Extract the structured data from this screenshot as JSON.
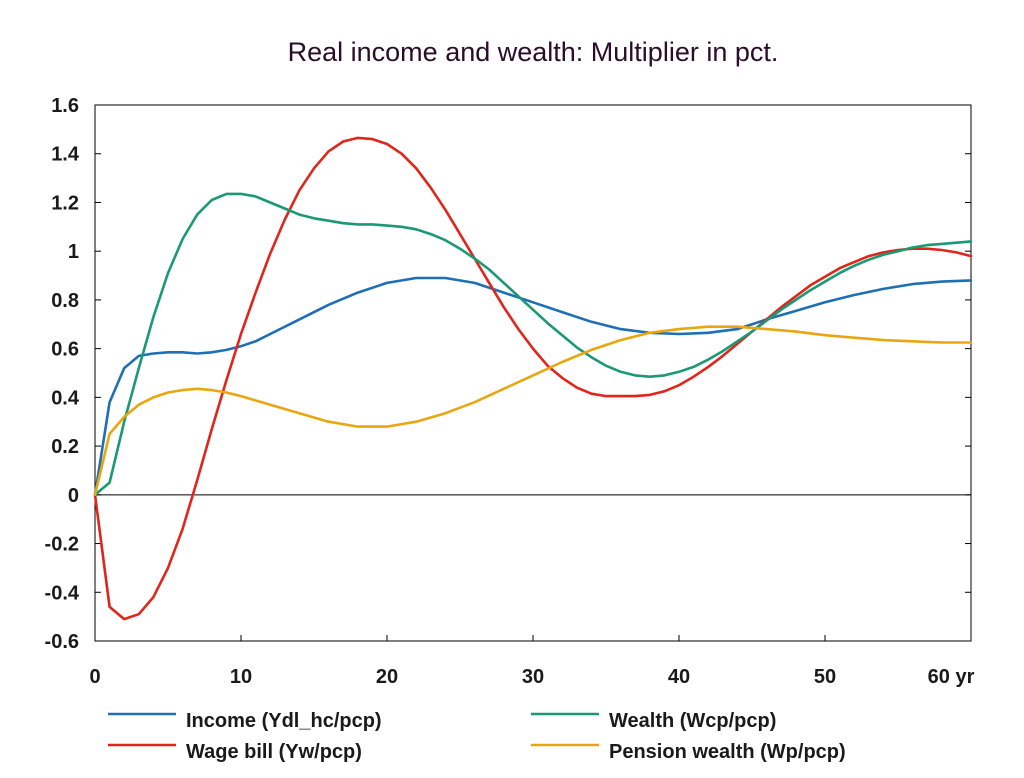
{
  "chart_data": {
    "type": "line",
    "title": "Real income and wealth: Multiplier in pct.",
    "xlabel": "",
    "ylabel": "",
    "xlim": [
      0,
      60
    ],
    "ylim": [
      -0.6,
      1.6
    ],
    "x_ticks": [
      "0",
      "10",
      "20",
      "30",
      "40",
      "50",
      "60 yr"
    ],
    "x_tick_values": [
      0,
      10,
      20,
      30,
      40,
      50,
      60
    ],
    "y_ticks": [
      "-0.6",
      "-0.4",
      "-0.2",
      "0",
      "0.2",
      "0.4",
      "0.6",
      "0.8",
      "1",
      "1.2",
      "1.4",
      "1.6"
    ],
    "y_tick_values": [
      -0.6,
      -0.4,
      -0.2,
      0,
      0.2,
      0.4,
      0.6,
      0.8,
      1,
      1.2,
      1.4,
      1.6
    ],
    "zero_line": true,
    "grid": false,
    "legend_position": "bottom",
    "series": [
      {
        "name": "Income (Ydl_hc/pcp)",
        "color": "#1f6fb4",
        "points": [
          [
            0,
            0
          ],
          [
            1,
            0.38
          ],
          [
            2,
            0.52
          ],
          [
            3,
            0.57
          ],
          [
            4,
            0.58
          ],
          [
            5,
            0.585
          ],
          [
            6,
            0.585
          ],
          [
            7,
            0.58
          ],
          [
            8,
            0.585
          ],
          [
            9,
            0.595
          ],
          [
            10,
            0.61
          ],
          [
            11,
            0.63
          ],
          [
            12,
            0.66
          ],
          [
            14,
            0.72
          ],
          [
            16,
            0.78
          ],
          [
            18,
            0.83
          ],
          [
            20,
            0.87
          ],
          [
            22,
            0.89
          ],
          [
            24,
            0.89
          ],
          [
            26,
            0.87
          ],
          [
            28,
            0.83
          ],
          [
            30,
            0.79
          ],
          [
            32,
            0.75
          ],
          [
            34,
            0.71
          ],
          [
            36,
            0.68
          ],
          [
            38,
            0.665
          ],
          [
            40,
            0.66
          ],
          [
            42,
            0.665
          ],
          [
            44,
            0.68
          ],
          [
            46,
            0.72
          ],
          [
            48,
            0.755
          ],
          [
            50,
            0.79
          ],
          [
            52,
            0.82
          ],
          [
            54,
            0.845
          ],
          [
            56,
            0.865
          ],
          [
            58,
            0.875
          ],
          [
            60,
            0.88
          ]
        ]
      },
      {
        "name": "Wage bill (Yw/pcp)",
        "color": "#e0251b",
        "points": [
          [
            0,
            0
          ],
          [
            1,
            -0.46
          ],
          [
            2,
            -0.51
          ],
          [
            3,
            -0.49
          ],
          [
            4,
            -0.42
          ],
          [
            5,
            -0.3
          ],
          [
            6,
            -0.14
          ],
          [
            7,
            0.06
          ],
          [
            8,
            0.27
          ],
          [
            9,
            0.47
          ],
          [
            10,
            0.66
          ],
          [
            11,
            0.83
          ],
          [
            12,
            0.99
          ],
          [
            13,
            1.13
          ],
          [
            14,
            1.25
          ],
          [
            15,
            1.34
          ],
          [
            16,
            1.41
          ],
          [
            17,
            1.45
          ],
          [
            18,
            1.465
          ],
          [
            19,
            1.46
          ],
          [
            20,
            1.44
          ],
          [
            21,
            1.4
          ],
          [
            22,
            1.34
          ],
          [
            23,
            1.26
          ],
          [
            24,
            1.17
          ],
          [
            25,
            1.07
          ],
          [
            26,
            0.97
          ],
          [
            27,
            0.87
          ],
          [
            28,
            0.77
          ],
          [
            29,
            0.68
          ],
          [
            30,
            0.6
          ],
          [
            31,
            0.53
          ],
          [
            32,
            0.48
          ],
          [
            33,
            0.44
          ],
          [
            34,
            0.415
          ],
          [
            35,
            0.405
          ],
          [
            36,
            0.405
          ],
          [
            37,
            0.405
          ],
          [
            38,
            0.41
          ],
          [
            39,
            0.425
          ],
          [
            40,
            0.45
          ],
          [
            41,
            0.485
          ],
          [
            42,
            0.525
          ],
          [
            43,
            0.57
          ],
          [
            44,
            0.62
          ],
          [
            45,
            0.67
          ],
          [
            46,
            0.72
          ],
          [
            47,
            0.77
          ],
          [
            48,
            0.815
          ],
          [
            49,
            0.86
          ],
          [
            50,
            0.895
          ],
          [
            51,
            0.93
          ],
          [
            52,
            0.955
          ],
          [
            53,
            0.98
          ],
          [
            54,
            0.995
          ],
          [
            55,
            1.005
          ],
          [
            56,
            1.01
          ],
          [
            57,
            1.01
          ],
          [
            58,
            1.005
          ],
          [
            59,
            0.995
          ],
          [
            60,
            0.98
          ]
        ]
      },
      {
        "name": "Wealth (Wcp/pcp)",
        "color": "#1a9a74",
        "points": [
          [
            0,
            0
          ],
          [
            1,
            0.05
          ],
          [
            2,
            0.3
          ],
          [
            3,
            0.52
          ],
          [
            4,
            0.73
          ],
          [
            5,
            0.91
          ],
          [
            6,
            1.05
          ],
          [
            7,
            1.15
          ],
          [
            8,
            1.21
          ],
          [
            9,
            1.235
          ],
          [
            10,
            1.235
          ],
          [
            11,
            1.225
          ],
          [
            12,
            1.2
          ],
          [
            13,
            1.175
          ],
          [
            14,
            1.15
          ],
          [
            15,
            1.135
          ],
          [
            16,
            1.125
          ],
          [
            17,
            1.115
          ],
          [
            18,
            1.11
          ],
          [
            19,
            1.11
          ],
          [
            20,
            1.105
          ],
          [
            21,
            1.1
          ],
          [
            22,
            1.09
          ],
          [
            23,
            1.07
          ],
          [
            24,
            1.045
          ],
          [
            25,
            1.01
          ],
          [
            26,
            0.97
          ],
          [
            27,
            0.925
          ],
          [
            28,
            0.87
          ],
          [
            29,
            0.815
          ],
          [
            30,
            0.76
          ],
          [
            31,
            0.705
          ],
          [
            32,
            0.655
          ],
          [
            33,
            0.605
          ],
          [
            34,
            0.565
          ],
          [
            35,
            0.53
          ],
          [
            36,
            0.505
          ],
          [
            37,
            0.49
          ],
          [
            38,
            0.485
          ],
          [
            39,
            0.49
          ],
          [
            40,
            0.505
          ],
          [
            41,
            0.525
          ],
          [
            42,
            0.555
          ],
          [
            43,
            0.59
          ],
          [
            44,
            0.63
          ],
          [
            45,
            0.67
          ],
          [
            46,
            0.715
          ],
          [
            47,
            0.76
          ],
          [
            48,
            0.8
          ],
          [
            49,
            0.84
          ],
          [
            50,
            0.875
          ],
          [
            51,
            0.91
          ],
          [
            52,
            0.94
          ],
          [
            53,
            0.965
          ],
          [
            54,
            0.985
          ],
          [
            55,
            1.0
          ],
          [
            56,
            1.015
          ],
          [
            57,
            1.025
          ],
          [
            58,
            1.03
          ],
          [
            59,
            1.035
          ],
          [
            60,
            1.04
          ]
        ]
      },
      {
        "name": "Pension wealth (Wp/pcp)",
        "color": "#e8a710",
        "points": [
          [
            0,
            0
          ],
          [
            1,
            0.25
          ],
          [
            2,
            0.32
          ],
          [
            3,
            0.37
          ],
          [
            4,
            0.4
          ],
          [
            5,
            0.42
          ],
          [
            6,
            0.43
          ],
          [
            7,
            0.435
          ],
          [
            8,
            0.43
          ],
          [
            9,
            0.42
          ],
          [
            10,
            0.405
          ],
          [
            12,
            0.37
          ],
          [
            14,
            0.335
          ],
          [
            16,
            0.3
          ],
          [
            18,
            0.28
          ],
          [
            20,
            0.28
          ],
          [
            22,
            0.3
          ],
          [
            24,
            0.335
          ],
          [
            26,
            0.38
          ],
          [
            28,
            0.435
          ],
          [
            30,
            0.49
          ],
          [
            32,
            0.545
          ],
          [
            34,
            0.595
          ],
          [
            36,
            0.635
          ],
          [
            38,
            0.665
          ],
          [
            40,
            0.68
          ],
          [
            42,
            0.69
          ],
          [
            44,
            0.69
          ],
          [
            46,
            0.68
          ],
          [
            48,
            0.67
          ],
          [
            50,
            0.655
          ],
          [
            52,
            0.645
          ],
          [
            54,
            0.635
          ],
          [
            56,
            0.63
          ],
          [
            58,
            0.625
          ],
          [
            60,
            0.625
          ]
        ]
      }
    ]
  }
}
